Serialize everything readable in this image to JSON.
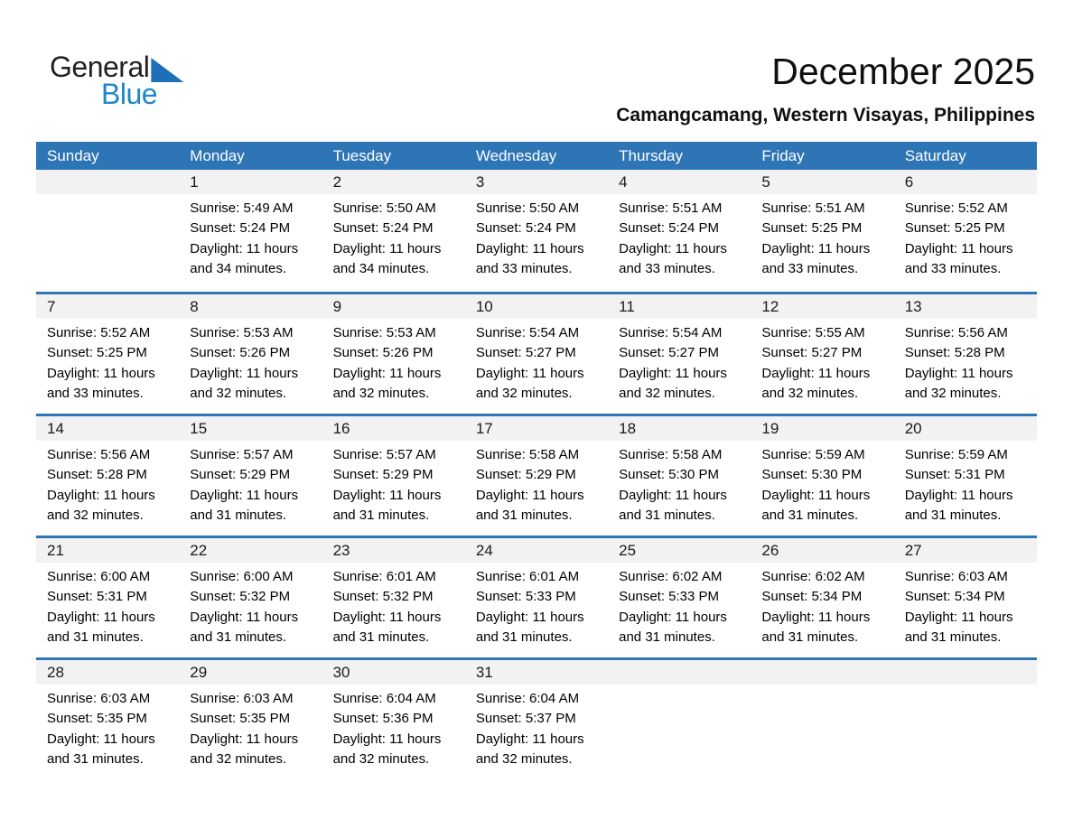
{
  "logo": {
    "part1": "General",
    "part2": "Blue"
  },
  "page_header": {
    "title": "December 2025",
    "subtitle": "Camangcamang, Western Visayas, Philippines"
  },
  "colors": {
    "header_blue": "#2E75B6",
    "divider_blue": "#2E75B6",
    "day_band_gray": "#F2F2F2",
    "logo_blue": "#1E87C9",
    "logo_triangle_blue": "#1D70B8",
    "header_text": "#FFFFFF"
  },
  "calendar": {
    "weekdays": [
      "Sunday",
      "Monday",
      "Tuesday",
      "Wednesday",
      "Thursday",
      "Friday",
      "Saturday"
    ],
    "weeks": [
      [
        null,
        {
          "day": "1",
          "sunrise": "Sunrise: 5:49 AM",
          "sunset": "Sunset: 5:24 PM",
          "daylight_lines": [
            "Daylight: 11 hours",
            "and 34 minutes."
          ]
        },
        {
          "day": "2",
          "sunrise": "Sunrise: 5:50 AM",
          "sunset": "Sunset: 5:24 PM",
          "daylight_lines": [
            "Daylight: 11 hours",
            "and 34 minutes."
          ]
        },
        {
          "day": "3",
          "sunrise": "Sunrise: 5:50 AM",
          "sunset": "Sunset: 5:24 PM",
          "daylight_lines": [
            "Daylight: 11 hours",
            "and 33 minutes."
          ]
        },
        {
          "day": "4",
          "sunrise": "Sunrise: 5:51 AM",
          "sunset": "Sunset: 5:24 PM",
          "daylight_lines": [
            "Daylight: 11 hours",
            "and 33 minutes."
          ]
        },
        {
          "day": "5",
          "sunrise": "Sunrise: 5:51 AM",
          "sunset": "Sunset: 5:25 PM",
          "daylight_lines": [
            "Daylight: 11 hours",
            "and 33 minutes."
          ]
        },
        {
          "day": "6",
          "sunrise": "Sunrise: 5:52 AM",
          "sunset": "Sunset: 5:25 PM",
          "daylight_lines": [
            "Daylight: 11 hours",
            "and 33 minutes."
          ]
        }
      ],
      [
        {
          "day": "7",
          "sunrise": "Sunrise: 5:52 AM",
          "sunset": "Sunset: 5:25 PM",
          "daylight_lines": [
            "Daylight: 11 hours",
            "and 33 minutes."
          ]
        },
        {
          "day": "8",
          "sunrise": "Sunrise: 5:53 AM",
          "sunset": "Sunset: 5:26 PM",
          "daylight_lines": [
            "Daylight: 11 hours",
            "and 32 minutes."
          ]
        },
        {
          "day": "9",
          "sunrise": "Sunrise: 5:53 AM",
          "sunset": "Sunset: 5:26 PM",
          "daylight_lines": [
            "Daylight: 11 hours",
            "and 32 minutes."
          ]
        },
        {
          "day": "10",
          "sunrise": "Sunrise: 5:54 AM",
          "sunset": "Sunset: 5:27 PM",
          "daylight_lines": [
            "Daylight: 11 hours",
            "and 32 minutes."
          ]
        },
        {
          "day": "11",
          "sunrise": "Sunrise: 5:54 AM",
          "sunset": "Sunset: 5:27 PM",
          "daylight_lines": [
            "Daylight: 11 hours",
            "and 32 minutes."
          ]
        },
        {
          "day": "12",
          "sunrise": "Sunrise: 5:55 AM",
          "sunset": "Sunset: 5:27 PM",
          "daylight_lines": [
            "Daylight: 11 hours",
            "and 32 minutes."
          ]
        },
        {
          "day": "13",
          "sunrise": "Sunrise: 5:56 AM",
          "sunset": "Sunset: 5:28 PM",
          "daylight_lines": [
            "Daylight: 11 hours",
            "and 32 minutes."
          ]
        }
      ],
      [
        {
          "day": "14",
          "sunrise": "Sunrise: 5:56 AM",
          "sunset": "Sunset: 5:28 PM",
          "daylight_lines": [
            "Daylight: 11 hours",
            "and 32 minutes."
          ]
        },
        {
          "day": "15",
          "sunrise": "Sunrise: 5:57 AM",
          "sunset": "Sunset: 5:29 PM",
          "daylight_lines": [
            "Daylight: 11 hours",
            "and 31 minutes."
          ]
        },
        {
          "day": "16",
          "sunrise": "Sunrise: 5:57 AM",
          "sunset": "Sunset: 5:29 PM",
          "daylight_lines": [
            "Daylight: 11 hours",
            "and 31 minutes."
          ]
        },
        {
          "day": "17",
          "sunrise": "Sunrise: 5:58 AM",
          "sunset": "Sunset: 5:29 PM",
          "daylight_lines": [
            "Daylight: 11 hours",
            "and 31 minutes."
          ]
        },
        {
          "day": "18",
          "sunrise": "Sunrise: 5:58 AM",
          "sunset": "Sunset: 5:30 PM",
          "daylight_lines": [
            "Daylight: 11 hours",
            "and 31 minutes."
          ]
        },
        {
          "day": "19",
          "sunrise": "Sunrise: 5:59 AM",
          "sunset": "Sunset: 5:30 PM",
          "daylight_lines": [
            "Daylight: 11 hours",
            "and 31 minutes."
          ]
        },
        {
          "day": "20",
          "sunrise": "Sunrise: 5:59 AM",
          "sunset": "Sunset: 5:31 PM",
          "daylight_lines": [
            "Daylight: 11 hours",
            "and 31 minutes."
          ]
        }
      ],
      [
        {
          "day": "21",
          "sunrise": "Sunrise: 6:00 AM",
          "sunset": "Sunset: 5:31 PM",
          "daylight_lines": [
            "Daylight: 11 hours",
            "and 31 minutes."
          ]
        },
        {
          "day": "22",
          "sunrise": "Sunrise: 6:00 AM",
          "sunset": "Sunset: 5:32 PM",
          "daylight_lines": [
            "Daylight: 11 hours",
            "and 31 minutes."
          ]
        },
        {
          "day": "23",
          "sunrise": "Sunrise: 6:01 AM",
          "sunset": "Sunset: 5:32 PM",
          "daylight_lines": [
            "Daylight: 11 hours",
            "and 31 minutes."
          ]
        },
        {
          "day": "24",
          "sunrise": "Sunrise: 6:01 AM",
          "sunset": "Sunset: 5:33 PM",
          "daylight_lines": [
            "Daylight: 11 hours",
            "and 31 minutes."
          ]
        },
        {
          "day": "25",
          "sunrise": "Sunrise: 6:02 AM",
          "sunset": "Sunset: 5:33 PM",
          "daylight_lines": [
            "Daylight: 11 hours",
            "and 31 minutes."
          ]
        },
        {
          "day": "26",
          "sunrise": "Sunrise: 6:02 AM",
          "sunset": "Sunset: 5:34 PM",
          "daylight_lines": [
            "Daylight: 11 hours",
            "and 31 minutes."
          ]
        },
        {
          "day": "27",
          "sunrise": "Sunrise: 6:03 AM",
          "sunset": "Sunset: 5:34 PM",
          "daylight_lines": [
            "Daylight: 11 hours",
            "and 31 minutes."
          ]
        }
      ],
      [
        {
          "day": "28",
          "sunrise": "Sunrise: 6:03 AM",
          "sunset": "Sunset: 5:35 PM",
          "daylight_lines": [
            "Daylight: 11 hours",
            "and 31 minutes."
          ]
        },
        {
          "day": "29",
          "sunrise": "Sunrise: 6:03 AM",
          "sunset": "Sunset: 5:35 PM",
          "daylight_lines": [
            "Daylight: 11 hours",
            "and 32 minutes."
          ]
        },
        {
          "day": "30",
          "sunrise": "Sunrise: 6:04 AM",
          "sunset": "Sunset: 5:36 PM",
          "daylight_lines": [
            "Daylight: 11 hours",
            "and 32 minutes."
          ]
        },
        {
          "day": "31",
          "sunrise": "Sunrise: 6:04 AM",
          "sunset": "Sunset: 5:37 PM",
          "daylight_lines": [
            "Daylight: 11 hours",
            "and 32 minutes."
          ]
        },
        null,
        null,
        null
      ]
    ]
  }
}
